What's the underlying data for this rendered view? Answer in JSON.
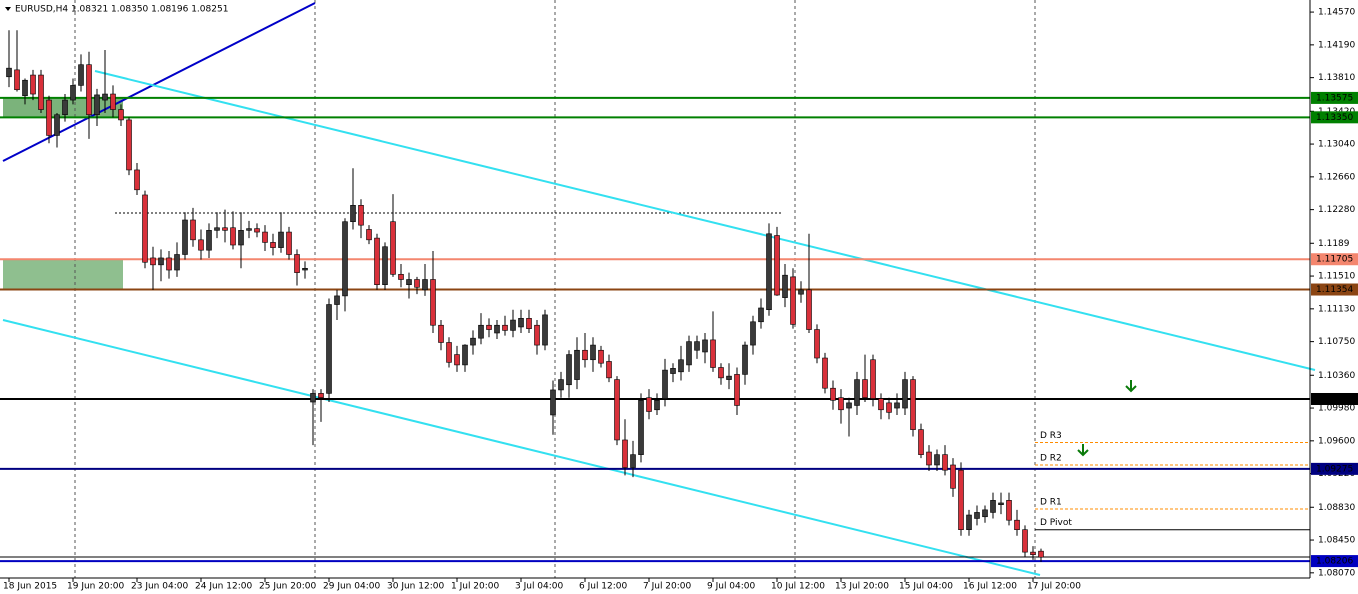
{
  "chart_data": {
    "type": "candlestick",
    "title": "EURUSD,H4  1.08321 1.08350 1.08196 1.08251",
    "up_color": "#3a3a3a",
    "down_color": "#d9303a",
    "categories": [
      "18 Jun 2015",
      null,
      null,
      null,
      null,
      null,
      null,
      null,
      "19 Jun 20:00",
      null,
      null,
      null,
      null,
      null,
      null,
      null,
      "23 Jun 04:00",
      null,
      null,
      null,
      null,
      null,
      null,
      null,
      "24 Jun 12:00",
      null,
      null,
      null,
      null,
      null,
      null,
      null,
      "25 Jun 20:00",
      null,
      null,
      null,
      null,
      null,
      null,
      null,
      "29 Jun 04:00",
      null,
      null,
      null,
      null,
      null,
      null,
      null,
      "30 Jun 12:00",
      null,
      null,
      null,
      null,
      null,
      null,
      null,
      "1 Jul 20:00",
      null,
      null,
      null,
      null,
      null,
      null,
      null,
      "3 Jul 04:00",
      null,
      null,
      null,
      null,
      null,
      null,
      null,
      "6 Jul 12:00",
      null,
      null,
      null,
      null,
      null,
      null,
      null,
      "7 Jul 20:00",
      null,
      null,
      null,
      null,
      null,
      null,
      null,
      "9 Jul 04:00",
      null,
      null,
      null,
      null,
      null,
      null,
      null,
      "10 Jul 12:00",
      null,
      null,
      null,
      null,
      null,
      null,
      null,
      "13 Jul 20:00",
      null,
      null,
      null,
      null,
      null,
      null,
      null,
      "15 Jul 04:00",
      null,
      null,
      null,
      null,
      null,
      null,
      null,
      "16 Jul 12:00",
      null,
      null,
      null,
      null,
      null,
      null,
      null,
      "17 Jul 20:00",
      null
    ],
    "ohlc": [
      [
        1.1382,
        1.1436,
        1.137,
        1.1392
      ],
      [
        1.139,
        1.1436,
        1.1365,
        1.1367
      ],
      [
        1.136,
        1.138,
        1.135,
        1.1378
      ],
      [
        1.1384,
        1.139,
        1.1355,
        1.1362
      ],
      [
        1.1384,
        1.139,
        1.134,
        1.1344
      ],
      [
        1.1355,
        1.136,
        1.1305,
        1.1314
      ],
      [
        1.1314,
        1.134,
        1.13,
        1.1338
      ],
      [
        1.1338,
        1.1362,
        1.133,
        1.1355
      ],
      [
        1.1355,
        1.138,
        1.135,
        1.1372
      ],
      [
        1.1372,
        1.1408,
        1.1365,
        1.1396
      ],
      [
        1.1396,
        1.1411,
        1.131,
        1.1338
      ],
      [
        1.1338,
        1.1368,
        1.1325,
        1.1361
      ],
      [
        1.1355,
        1.1413,
        1.134,
        1.1362
      ],
      [
        1.1362,
        1.1372,
        1.1335,
        1.1344
      ],
      [
        1.1344,
        1.135,
        1.1325,
        1.1332
      ],
      [
        1.1332,
        1.1335,
        1.1268,
        1.1274
      ],
      [
        1.1274,
        1.1282,
        1.1245,
        1.1251
      ],
      [
        1.1245,
        1.125,
        1.116,
        1.1167
      ],
      [
        1.1172,
        1.1185,
        1.1135,
        1.1164
      ],
      [
        1.1164,
        1.1182,
        1.1145,
        1.1172
      ],
      [
        1.1172,
        1.118,
        1.1148,
        1.1158
      ],
      [
        1.1158,
        1.119,
        1.115,
        1.1176
      ],
      [
        1.1176,
        1.1225,
        1.117,
        1.1216
      ],
      [
        1.1216,
        1.123,
        1.1185,
        1.1193
      ],
      [
        1.1193,
        1.1205,
        1.117,
        1.1181
      ],
      [
        1.1181,
        1.1212,
        1.1172,
        1.1204
      ],
      [
        1.1204,
        1.1225,
        1.1195,
        1.1207
      ],
      [
        1.1207,
        1.1228,
        1.119,
        1.1204
      ],
      [
        1.1207,
        1.1226,
        1.1182,
        1.1187
      ],
      [
        1.1187,
        1.1225,
        1.116,
        1.1204
      ],
      [
        1.1204,
        1.1215,
        1.1195,
        1.1206
      ],
      [
        1.1206,
        1.1212,
        1.1196,
        1.1202
      ],
      [
        1.1202,
        1.121,
        1.118,
        1.119
      ],
      [
        1.119,
        1.12,
        1.1175,
        1.1184
      ],
      [
        1.1184,
        1.1225,
        1.1178,
        1.1202
      ],
      [
        1.1202,
        1.1208,
        1.117,
        1.1176
      ],
      [
        1.1176,
        1.1182,
        1.114,
        1.1155
      ],
      [
        1.1158,
        1.1168,
        1.1148,
        1.116
      ],
      [
        1.1005,
        1.102,
        1.0955,
        1.1015
      ],
      [
        1.1015,
        1.102,
        1.0982,
        1.101
      ],
      [
        1.1015,
        1.1125,
        1.1005,
        1.1118
      ],
      [
        1.1118,
        1.1135,
        1.11,
        1.1128
      ],
      [
        1.1128,
        1.1218,
        1.111,
        1.1214
      ],
      [
        1.1214,
        1.1276,
        1.1205,
        1.1233
      ],
      [
        1.1233,
        1.124,
        1.1195,
        1.121
      ],
      [
        1.1205,
        1.121,
        1.1188,
        1.1193
      ],
      [
        1.1195,
        1.12,
        1.1135,
        1.1141
      ],
      [
        1.1141,
        1.119,
        1.1135,
        1.1185
      ],
      [
        1.1214,
        1.1246,
        1.115,
        1.1153
      ],
      [
        1.1153,
        1.1165,
        1.1138,
        1.1147
      ],
      [
        1.1141,
        1.1155,
        1.1125,
        1.1147
      ],
      [
        1.1147,
        1.115,
        1.113,
        1.1138
      ],
      [
        1.1135,
        1.1165,
        1.1128,
        1.1147
      ],
      [
        1.1147,
        1.118,
        1.1085,
        1.1094
      ],
      [
        1.1094,
        1.11,
        1.1065,
        1.1074
      ],
      [
        1.1074,
        1.108,
        1.1045,
        1.1051
      ],
      [
        1.106,
        1.107,
        1.104,
        1.1048
      ],
      [
        1.1048,
        1.1072,
        1.104,
        1.1071
      ],
      [
        1.1071,
        1.1088,
        1.106,
        1.1079
      ],
      [
        1.1079,
        1.1108,
        1.1072,
        1.1094
      ],
      [
        1.1094,
        1.1102,
        1.108,
        1.1089
      ],
      [
        1.1085,
        1.11,
        1.1078,
        1.1094
      ],
      [
        1.1094,
        1.1105,
        1.1082,
        1.1088
      ],
      [
        1.1088,
        1.1112,
        1.108,
        1.11
      ],
      [
        1.1092,
        1.1112,
        1.1085,
        1.1102
      ],
      [
        1.1102,
        1.1112,
        1.1085,
        1.109
      ],
      [
        1.1094,
        1.11,
        1.106,
        1.1071
      ],
      [
        1.1071,
        1.1112,
        1.1065,
        1.1106
      ],
      [
        1.099,
        1.103,
        1.0967,
        1.1019
      ],
      [
        1.1019,
        1.104,
        1.101,
        1.1031
      ],
      [
        1.1025,
        1.1065,
        1.101,
        1.106
      ],
      [
        1.1031,
        1.108,
        1.102,
        1.1065
      ],
      [
        1.1065,
        1.1085,
        1.1045,
        1.1054
      ],
      [
        1.1054,
        1.108,
        1.104,
        1.1071
      ],
      [
        1.1065,
        1.107,
        1.1045,
        1.105
      ],
      [
        1.1052,
        1.106,
        1.1028,
        1.1033
      ],
      [
        1.1031,
        1.1035,
        1.0955,
        1.0961
      ],
      [
        1.0961,
        1.0985,
        1.092,
        1.0929
      ],
      [
        1.0929,
        1.096,
        1.0918,
        1.0944
      ],
      [
        1.0944,
        1.1015,
        1.0935,
        1.1007
      ],
      [
        1.101,
        1.102,
        1.0985,
        1.0994
      ],
      [
        1.0996,
        1.1015,
        1.099,
        1.1007
      ],
      [
        1.1009,
        1.1055,
        1.1,
        1.1042
      ],
      [
        1.1038,
        1.105,
        1.1028,
        1.1044
      ],
      [
        1.104,
        1.107,
        1.103,
        1.1054
      ],
      [
        1.1048,
        1.1082,
        1.104,
        1.1075
      ],
      [
        1.1065,
        1.1082,
        1.1055,
        1.1075
      ],
      [
        1.1063,
        1.1085,
        1.105,
        1.1077
      ],
      [
        1.1077,
        1.111,
        1.104,
        1.1045
      ],
      [
        1.1045,
        1.105,
        1.1025,
        1.1033
      ],
      [
        1.1031,
        1.105,
        1.102,
        1.1035
      ],
      [
        1.1037,
        1.1045,
        1.099,
        1.1001
      ],
      [
        1.1037,
        1.1075,
        1.1025,
        1.1071
      ],
      [
        1.1071,
        1.1105,
        1.106,
        1.1098
      ],
      [
        1.1098,
        1.1125,
        1.109,
        1.1114
      ],
      [
        1.1112,
        1.1212,
        1.1105,
        1.12
      ],
      [
        1.1198,
        1.1208,
        1.1128,
        1.1129
      ],
      [
        1.1126,
        1.1165,
        1.1115,
        1.1152
      ],
      [
        1.115,
        1.116,
        1.109,
        1.1095
      ],
      [
        1.113,
        1.1145,
        1.112,
        1.1135
      ],
      [
        1.1135,
        1.12,
        1.1085,
        1.1089
      ],
      [
        1.1089,
        1.1095,
        1.105,
        1.1056
      ],
      [
        1.1056,
        1.1062,
        1.1015,
        1.1021
      ],
      [
        1.1021,
        1.103,
        1.0996,
        1.1007
      ],
      [
        1.101,
        1.102,
        1.098,
        1.0996
      ],
      [
        1.0998,
        1.101,
        1.0965,
        1.1004
      ],
      [
        1.1001,
        1.104,
        1.099,
        1.1031
      ],
      [
        1.1031,
        1.106,
        1.1005,
        1.101
      ],
      [
        1.1054,
        1.106,
        1.1,
        1.1009
      ],
      [
        1.1009,
        1.1015,
        1.0985,
        1.0996
      ],
      [
        1.1004,
        1.101,
        1.0985,
        1.0993
      ],
      [
        1.0998,
        1.1015,
        1.099,
        1.1004
      ],
      [
        1.0998,
        1.104,
        1.099,
        1.1031
      ],
      [
        1.1031,
        1.1035,
        1.0965,
        1.0973
      ],
      [
        1.0973,
        1.098,
        1.094,
        1.0944
      ],
      [
        1.0947,
        1.0955,
        1.0925,
        1.0932
      ],
      [
        1.0932,
        1.095,
        1.0925,
        1.0944
      ],
      [
        1.0944,
        1.0955,
        1.092,
        1.0926
      ],
      [
        1.0932,
        1.094,
        1.0895,
        1.0905
      ],
      [
        1.0926,
        1.0935,
        1.085,
        1.0857
      ],
      [
        1.0857,
        1.088,
        1.085,
        1.0874
      ],
      [
        1.087,
        1.0885,
        1.0862,
        1.0877
      ],
      [
        1.0872,
        1.0885,
        1.0865,
        1.088
      ],
      [
        1.0877,
        1.09,
        1.087,
        1.0891
      ],
      [
        1.0886,
        1.09,
        1.0875,
        1.0888
      ],
      [
        1.0891,
        1.09,
        1.0862,
        1.0868
      ],
      [
        1.0868,
        1.088,
        1.085,
        1.0857
      ],
      [
        1.0857,
        1.0862,
        1.0825,
        1.0831
      ],
      [
        1.0831,
        1.0838,
        1.0822,
        1.0828
      ],
      [
        1.08321,
        1.0835,
        1.08196,
        1.08251
      ]
    ],
    "ylim": [
      1.0801,
      1.1471
    ],
    "yticks": [
      {
        "value": 1.1457,
        "label": "1.14570"
      },
      {
        "value": 1.1419,
        "label": "1.14190"
      },
      {
        "value": 1.1381,
        "label": "1.13810"
      },
      {
        "value": 1.1342,
        "label": "1.13420"
      },
      {
        "value": 1.1304,
        "label": "1.13040"
      },
      {
        "value": 1.1266,
        "label": "1.12660"
      },
      {
        "value": 1.1228,
        "label": "1.12280"
      },
      1.1189,
      {
        "value": 1.1151,
        "label": "1.11510"
      },
      {
        "value": 1.1113,
        "label": "1.11130"
      },
      {
        "value": 1.1075,
        "label": "1.10750"
      },
      {
        "value": 1.1036,
        "label": "1.10360"
      },
      {
        "value": 1.0998,
        "label": "1.09980"
      },
      {
        "value": 1.096,
        "label": "1.09600"
      },
      {
        "value": 1.0922,
        "label": "1.09220"
      },
      {
        "value": 1.0883,
        "label": "1.08830"
      },
      {
        "value": 1.0845,
        "label": "1.08450"
      },
      {
        "value": 1.0807,
        "label": "1.08070"
      }
    ],
    "levels": [
      {
        "value": 1.13575,
        "color": "#008000"
      },
      {
        "value": 1.1335,
        "label": "1.13350",
        "color": "#008000"
      },
      {
        "value": 1.11705,
        "color": "#f4866e"
      },
      {
        "value": 1.11354,
        "color": "#8b4513"
      },
      {
        "value": 1.10085,
        "color": "#000000"
      },
      {
        "value": 1.09275,
        "color": "#000080"
      },
      {
        "value": 1.08206,
        "color": "#0000c0"
      }
    ],
    "pivots": [
      {
        "name": "D R3",
        "value": 1.0958,
        "color": "#ff8c00"
      },
      {
        "name": "D R2",
        "value": 1.0932,
        "color": "#ff8c00"
      },
      {
        "name": "D R1",
        "value": 1.0881,
        "color": "#ff8c00"
      },
      {
        "name": "D Pivot",
        "value": 1.0857,
        "color": "#000000"
      }
    ],
    "grid": false
  }
}
